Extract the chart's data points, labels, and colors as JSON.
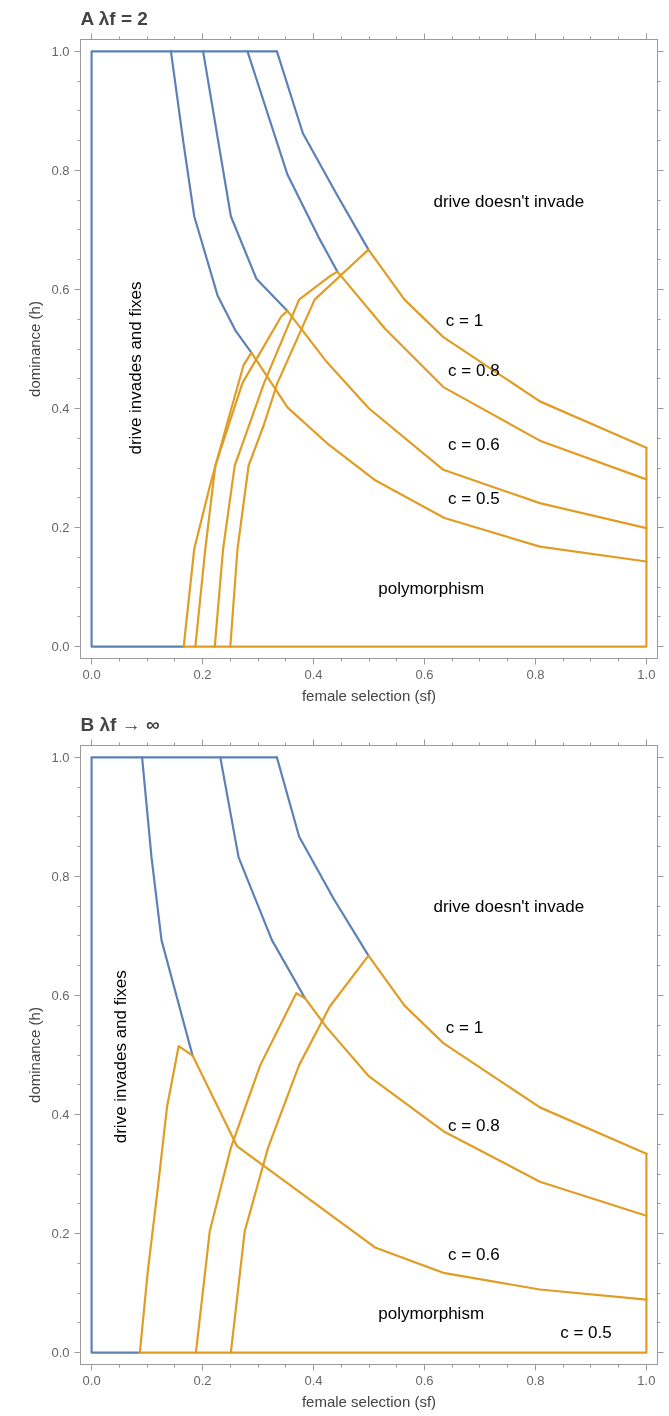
{
  "chart_data": [
    {
      "type": "line",
      "title": "A  λf = 2",
      "xlabel": "female selection (sf)",
      "ylabel": "dominance (h)",
      "xlim": [
        -0.02,
        1.02
      ],
      "ylim": [
        -0.02,
        1.02
      ],
      "xticks": [
        {
          "value": 0,
          "label": "0.0"
        },
        {
          "value": 0.2,
          "label": "0.2"
        },
        {
          "value": 0.4,
          "label": "0.4"
        },
        {
          "value": 0.6,
          "label": "0.6"
        },
        {
          "value": 0.8,
          "label": "0.8"
        },
        {
          "value": 1,
          "label": "1.0"
        }
      ],
      "yticks": [
        {
          "value": 0,
          "label": "0.0"
        },
        {
          "value": 0.2,
          "label": "0.2"
        },
        {
          "value": 0.4,
          "label": "0.4"
        },
        {
          "value": 0.6,
          "label": "0.6"
        },
        {
          "value": 0.8,
          "label": "0.8"
        },
        {
          "value": 1,
          "label": "1.0"
        }
      ],
      "series": [
        {
          "color": "#5e81b5",
          "x": [
            0.334,
            0,
            0,
            0.166
          ],
          "values": [
            1,
            1,
            0,
            0
          ]
        },
        {
          "color": "#e19c24",
          "x": [
            0.166,
            1,
            1
          ],
          "values": [
            0,
            0,
            0.334
          ]
        },
        {
          "color": "#5e81b5",
          "x": [
            0.143,
            0.165,
            0.185,
            0.227,
            0.26,
            0.288
          ],
          "values": [
            1,
            0.85,
            0.723,
            0.59,
            0.53,
            0.494
          ]
        },
        {
          "color": "#5e81b5",
          "x": [
            0.201,
            0.251,
            0.297,
            0.353
          ],
          "values": [
            1,
            0.723,
            0.618,
            0.564
          ]
        },
        {
          "color": "#5e81b5",
          "x": [
            0.281,
            0.353,
            0.409,
            0.443
          ],
          "values": [
            1,
            0.793,
            0.688,
            0.63
          ]
        },
        {
          "color": "#5e81b5",
          "x": [
            0.334,
            0.381,
            0.443,
            0.499
          ],
          "values": [
            1,
            0.862,
            0.758,
            0.667
          ]
        },
        {
          "color": "#e19c24",
          "x": [
            0.166,
            0.185,
            0.213,
            0.244,
            0.274,
            0.288,
            0.353,
            0.424,
            0.512,
            0.636,
            0.808,
            1
          ],
          "values": [
            0,
            0.164,
            0.269,
            0.374,
            0.473,
            0.494,
            0.402,
            0.342,
            0.279,
            0.216,
            0.168,
            0.143
          ]
        },
        {
          "color": "#e19c24",
          "x": [
            0.187,
            0.205,
            0.223,
            0.272,
            0.342,
            0.353,
            0.424,
            0.5,
            0.634,
            0.808,
            1
          ],
          "values": [
            0,
            0.164,
            0.304,
            0.443,
            0.555,
            0.564,
            0.478,
            0.4,
            0.297,
            0.241,
            0.199
          ]
        },
        {
          "color": "#e19c24",
          "x": [
            0.222,
            0.237,
            0.258,
            0.311,
            0.374,
            0.429,
            0.443,
            0.529,
            0.634,
            0.808,
            1
          ],
          "values": [
            0,
            0.164,
            0.304,
            0.443,
            0.583,
            0.622,
            0.63,
            0.534,
            0.436,
            0.346,
            0.281
          ]
        },
        {
          "color": "#e19c24",
          "x": [
            0.25,
            0.263,
            0.283,
            0.311,
            0.335,
            0.402,
            0.499,
            0.564,
            0.634,
            0.808,
            1
          ],
          "values": [
            0,
            0.164,
            0.304,
            0.374,
            0.443,
            0.583,
            0.667,
            0.583,
            0.52,
            0.412,
            0.334
          ]
        }
      ],
      "annotations": [
        "drive doesn't invade",
        "drive invades and fixes",
        "polymorphism",
        "c = 1",
        "c = 0.8",
        "c = 0.6",
        "c = 0.5"
      ]
    },
    {
      "type": "line",
      "title": "B  λf → ∞",
      "xlabel": "female selection (sf)",
      "ylabel": "dominance (h)",
      "xlim": [
        -0.02,
        1.02
      ],
      "ylim": [
        -0.02,
        1.02
      ],
      "xticks": [
        {
          "value": 0,
          "label": "0.0"
        },
        {
          "value": 0.2,
          "label": "0.2"
        },
        {
          "value": 0.4,
          "label": "0.4"
        },
        {
          "value": 0.6,
          "label": "0.6"
        },
        {
          "value": 0.8,
          "label": "0.8"
        },
        {
          "value": 1,
          "label": "1.0"
        }
      ],
      "yticks": [
        {
          "value": 0,
          "label": "0.0"
        },
        {
          "value": 0.2,
          "label": "0.2"
        },
        {
          "value": 0.4,
          "label": "0.4"
        },
        {
          "value": 0.6,
          "label": "0.6"
        },
        {
          "value": 0.8,
          "label": "0.8"
        },
        {
          "value": 1,
          "label": "1.0"
        }
      ],
      "series": [
        {
          "color": "#5e81b5",
          "x": [
            0.334,
            0,
            0,
            0.087
          ],
          "values": [
            1,
            1,
            0,
            0
          ]
        },
        {
          "color": "#e19c24",
          "x": [
            0.087,
            1,
            1
          ],
          "values": [
            0,
            0,
            0.334
          ]
        },
        {
          "color": "#5e81b5",
          "x": [
            0.091,
            0.108,
            0.126,
            0.182
          ],
          "values": [
            1,
            0.832,
            0.693,
            0.499
          ]
        },
        {
          "color": "#5e81b5",
          "x": [
            0.232,
            0.265,
            0.325,
            0.385
          ],
          "values": [
            1,
            0.832,
            0.693,
            0.595
          ]
        },
        {
          "color": "#5e81b5",
          "x": [
            0.334,
            0.374,
            0.436,
            0.499
          ],
          "values": [
            1,
            0.867,
            0.763,
            0.667
          ]
        },
        {
          "color": "#e19c24",
          "x": [
            0.087,
            0.101,
            0.119,
            0.136,
            0.157,
            0.182,
            0.262,
            0.512,
            0.634,
            0.808,
            1
          ],
          "values": [
            0,
            0.134,
            0.274,
            0.413,
            0.515,
            0.499,
            0.347,
            0.176,
            0.134,
            0.106,
            0.089
          ]
        },
        {
          "color": "#e19c24",
          "x": [
            0.188,
            0.213,
            0.251,
            0.304,
            0.369,
            0.385,
            0.424,
            0.5,
            0.634,
            0.808,
            1
          ],
          "values": [
            0,
            0.204,
            0.344,
            0.483,
            0.604,
            0.595,
            0.546,
            0.464,
            0.372,
            0.287,
            0.23
          ]
        },
        {
          "color": "#e19c24",
          "x": [
            0.251,
            0.276,
            0.318,
            0.374,
            0.429,
            0.499,
            0.564,
            0.634,
            0.808,
            1
          ],
          "values": [
            0,
            0.204,
            0.344,
            0.483,
            0.581,
            0.667,
            0.583,
            0.52,
            0.412,
            0.334
          ]
        }
      ],
      "annotations": [
        "drive doesn't invade",
        "drive invades and fixes",
        "polymorphism",
        "c = 1",
        "c = 0.8",
        "c = 0.6",
        "c = 0.5"
      ]
    }
  ]
}
